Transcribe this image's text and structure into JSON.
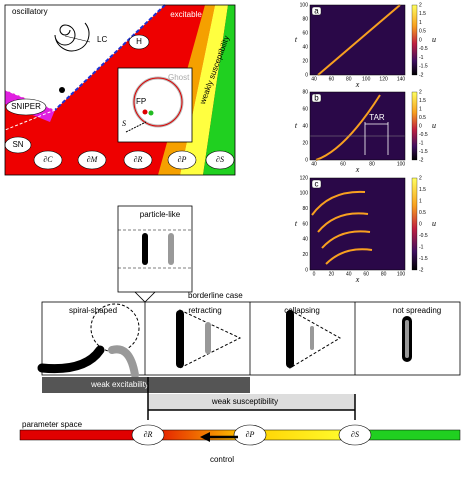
{
  "phase_diagram": {
    "regions": {
      "oscillatory": "oscillatory",
      "excitable": "excitable",
      "weak_susceptibility": "weakly susceptibility"
    },
    "points": {
      "lc": "LC",
      "h": "H",
      "sniper": "SNIPER",
      "sn": "SN"
    },
    "inset": {
      "ghost": "Ghost",
      "fp": "FP",
      "s": "S"
    },
    "boundaries": [
      "∂C",
      "∂M",
      "∂R",
      "∂P",
      "∂S"
    ]
  },
  "heatmaps": [
    {
      "label": "a",
      "y_label": "t",
      "x_label": "x",
      "colorbar_label": "u",
      "yticks": [
        0,
        20,
        40,
        60,
        80,
        100
      ],
      "xticks": [
        40,
        60,
        80,
        100,
        120,
        140
      ],
      "colorbar_ticks": [
        2,
        1.5,
        1,
        0.5,
        0,
        -0.5,
        -1,
        -1.5,
        -2
      ]
    },
    {
      "label": "b",
      "y_label": "t",
      "x_label": "x",
      "colorbar_label": "u",
      "annotation": "TAR",
      "yticks": [
        0,
        20,
        40,
        60,
        80
      ],
      "xticks": [
        40,
        60,
        80,
        100
      ],
      "colorbar_ticks": [
        2,
        1.5,
        1,
        0.5,
        0,
        -0.5,
        -1,
        -1.5,
        -2
      ]
    },
    {
      "label": "c",
      "y_label": "t",
      "x_label": "x",
      "colorbar_label": "u",
      "yticks": [
        0,
        20,
        40,
        60,
        80,
        100,
        120
      ],
      "xticks": [
        0,
        20,
        40,
        60,
        80,
        100
      ],
      "colorbar_ticks": [
        2,
        1.5,
        1,
        0.5,
        0,
        -0.5,
        -1,
        -1.5,
        -2
      ]
    }
  ],
  "schematic": {
    "callout": "particle-like",
    "borderline": "borderline case",
    "panels": [
      "spiral-shaped",
      "retracting",
      "collapsing",
      "not spreading"
    ],
    "ranges": [
      "weak excitability",
      "weak susceptibility"
    ]
  },
  "parameter_space": {
    "label": "parameter space",
    "boundaries": [
      "∂R",
      "∂P",
      "∂S"
    ],
    "control": "control"
  }
}
